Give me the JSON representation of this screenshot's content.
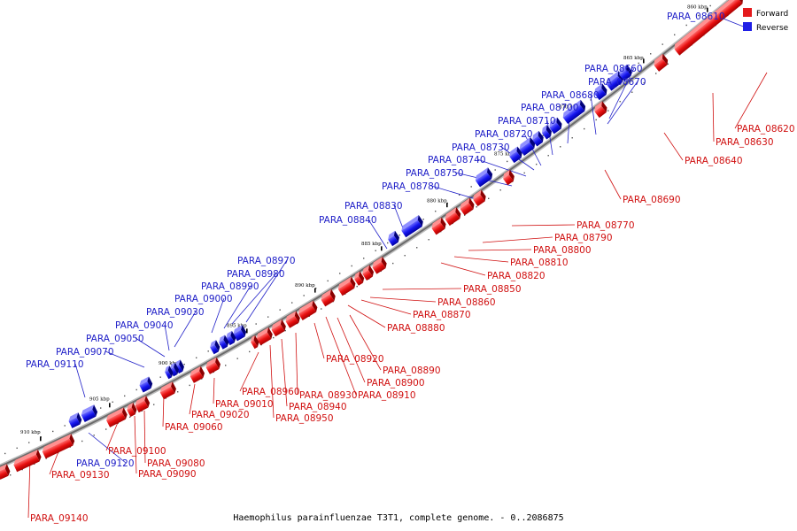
{
  "caption": "Haemophilus parainfluenzae T3T1, complete genome. - 0..2086875",
  "legend": {
    "forward": "Forward",
    "reverse": "Reverse"
  },
  "colors": {
    "forward": "#e41a1c",
    "reverse": "#1f1fe6",
    "backbone": "#8a8a8a"
  },
  "kbp_marks": [
    "860 kbp",
    "865 kbp",
    "870 kbp",
    "875 kbp",
    "880 kbp",
    "885 kbp",
    "890 kbp",
    "895 kbp",
    "900 kbp",
    "905 kbp",
    "910 kbp"
  ],
  "reverse_genes": [
    "PARA_08610",
    "PARA_08660",
    "PARA_08670",
    "PARA_08680",
    "PARA_08700",
    "PARA_08710",
    "PARA_08720",
    "PARA_08730",
    "PARA_08740",
    "PARA_08750",
    "PARA_08780",
    "PARA_08830",
    "PARA_08840",
    "PARA_08970",
    "PARA_08980",
    "PARA_08990",
    "PARA_09000",
    "PARA_09030",
    "PARA_09040",
    "PARA_09050",
    "PARA_09070",
    "PARA_09110",
    "PARA_09120"
  ],
  "forward_genes": [
    "PARA_08620",
    "PARA_08630",
    "PARA_08640",
    "PARA_08690",
    "PARA_08770",
    "PARA_08790",
    "PARA_08800",
    "PARA_08810",
    "PARA_08820",
    "PARA_08850",
    "PARA_08860",
    "PARA_08870",
    "PARA_08880",
    "PARA_08890",
    "PARA_08900",
    "PARA_08910",
    "PARA_08920",
    "PARA_08930",
    "PARA_08940",
    "PARA_08950",
    "PARA_08960",
    "PARA_09010",
    "PARA_09020",
    "PARA_09060",
    "PARA_09080",
    "PARA_09090",
    "PARA_09100",
    "PARA_09130",
    "PARA_09140"
  ]
}
